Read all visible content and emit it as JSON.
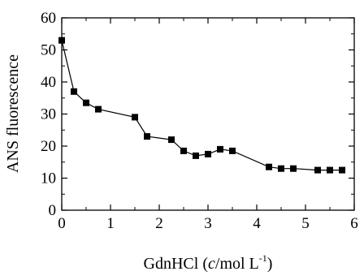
{
  "chart_data": {
    "type": "line",
    "x": [
      0,
      0.25,
      0.5,
      0.75,
      1.5,
      1.75,
      2.25,
      2.5,
      2.75,
      3.0,
      3.25,
      3.5,
      4.25,
      4.5,
      4.75,
      5.25,
      5.5,
      5.75
    ],
    "series": [
      {
        "values": [
          53,
          37,
          33.5,
          31.5,
          29,
          23,
          22,
          18.5,
          17,
          17.5,
          19,
          18.5,
          13.5,
          13,
          13,
          12.5,
          12.5,
          12.5
        ]
      }
    ],
    "xlim": [
      0,
      6
    ],
    "ylim": [
      0,
      60
    ],
    "xticks": [
      0,
      1,
      2,
      3,
      4,
      5,
      6
    ],
    "yticks": [
      0,
      10,
      20,
      30,
      40,
      50,
      60
    ],
    "xlabel": {
      "prefix": "GdnHCl (",
      "italic": "c",
      "unit": "/mol L",
      "superscript": "-1",
      "suffix": ")"
    },
    "ylabel": "ANS fluorescence",
    "grid": false,
    "legend": "none",
    "marker": "square",
    "colors": {
      "line": "#000000",
      "marker": "#000000",
      "axis": "#000000"
    }
  }
}
